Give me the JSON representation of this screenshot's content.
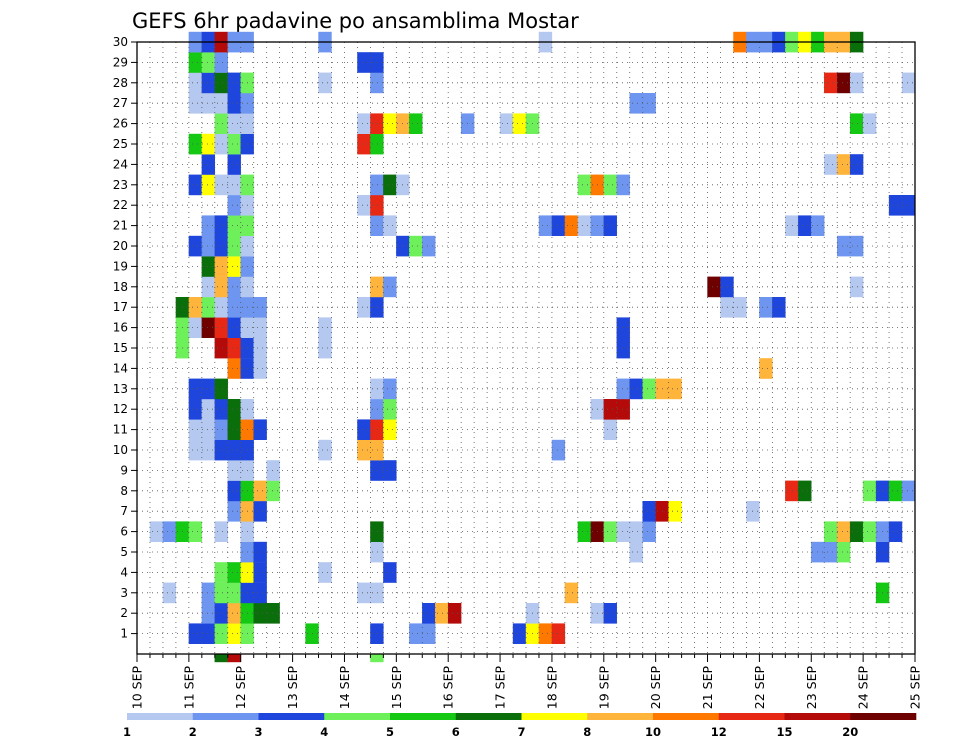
{
  "chart_data": {
    "type": "heatmap",
    "title": "GEFS 6hr padavine po ansamblima Mostar",
    "x_ticks": [
      "10 SEP",
      "11 SEP",
      "12 SEP",
      "13 SEP",
      "14 SEP",
      "15 SEP",
      "16 SEP",
      "17 SEP",
      "18 SEP",
      "19 SEP",
      "20 SEP",
      "21 SEP",
      "22 SEP",
      "23 SEP",
      "24 SEP",
      "25 SEP"
    ],
    "x_unit": "6-hour step from 10 SEP 00Z",
    "y_ticks": [
      1,
      2,
      3,
      4,
      5,
      6,
      7,
      8,
      9,
      10,
      11,
      12,
      13,
      14,
      15,
      16,
      17,
      18,
      19,
      20,
      21,
      22,
      23,
      24,
      25,
      26,
      27,
      28,
      29,
      30
    ],
    "ylim": [
      0,
      30
    ],
    "xlim": [
      0,
      60
    ],
    "grid": true,
    "colorbar": {
      "labels": [
        "1",
        "2",
        "3",
        "4",
        "5",
        "6",
        "7",
        "8",
        "10",
        "12",
        "15",
        "20"
      ],
      "colors": [
        "#b4c8f0",
        "#6e96f0",
        "#1e46dc",
        "#6ef05a",
        "#14c814",
        "#0a6e0a",
        "#ffff00",
        "#ffb43c",
        "#ff7800",
        "#e62814",
        "#b40a0a",
        "#6e0000"
      ]
    },
    "cells": [
      [
        4,
        1,
        2
      ],
      [
        5,
        1,
        2
      ],
      [
        6,
        1,
        3
      ],
      [
        7,
        1,
        6
      ],
      [
        8,
        1,
        3
      ],
      [
        13,
        1,
        4
      ],
      [
        18,
        1,
        2
      ],
      [
        21,
        1,
        1
      ],
      [
        22,
        1,
        1
      ],
      [
        29,
        1,
        2
      ],
      [
        30,
        1,
        6
      ],
      [
        31,
        1,
        8
      ],
      [
        32,
        1,
        9
      ],
      [
        5,
        2,
        1
      ],
      [
        6,
        2,
        2
      ],
      [
        7,
        2,
        7
      ],
      [
        8,
        2,
        4
      ],
      [
        9,
        2,
        5
      ],
      [
        10,
        2,
        5
      ],
      [
        22,
        2,
        2
      ],
      [
        23,
        2,
        7
      ],
      [
        24,
        2,
        10
      ],
      [
        30,
        2,
        0
      ],
      [
        35,
        2,
        0
      ],
      [
        36,
        2,
        2
      ],
      [
        2,
        3,
        0
      ],
      [
        5,
        3,
        1
      ],
      [
        6,
        3,
        3
      ],
      [
        7,
        3,
        3
      ],
      [
        8,
        3,
        2
      ],
      [
        9,
        3,
        2
      ],
      [
        17,
        3,
        0
      ],
      [
        18,
        3,
        0
      ],
      [
        33,
        3,
        7
      ],
      [
        57,
        3,
        4
      ],
      [
        6,
        4,
        3
      ],
      [
        7,
        4,
        4
      ],
      [
        8,
        4,
        6
      ],
      [
        9,
        4,
        2
      ],
      [
        14,
        4,
        0
      ],
      [
        19,
        4,
        2
      ],
      [
        8,
        5,
        1
      ],
      [
        9,
        5,
        2
      ],
      [
        18,
        5,
        0
      ],
      [
        38,
        5,
        0
      ],
      [
        52,
        5,
        1
      ],
      [
        53,
        5,
        1
      ],
      [
        54,
        5,
        3
      ],
      [
        57,
        5,
        2
      ],
      [
        1,
        6,
        0
      ],
      [
        2,
        6,
        1
      ],
      [
        3,
        6,
        4
      ],
      [
        4,
        6,
        3
      ],
      [
        6,
        6,
        0
      ],
      [
        8,
        6,
        0
      ],
      [
        18,
        6,
        5
      ],
      [
        34,
        6,
        4
      ],
      [
        35,
        6,
        11
      ],
      [
        36,
        6,
        3
      ],
      [
        37,
        6,
        0
      ],
      [
        38,
        6,
        0
      ],
      [
        39,
        6,
        1
      ],
      [
        53,
        6,
        3
      ],
      [
        54,
        6,
        7
      ],
      [
        55,
        6,
        5
      ],
      [
        56,
        6,
        3
      ],
      [
        57,
        6,
        1
      ],
      [
        58,
        6,
        2
      ],
      [
        7,
        7,
        1
      ],
      [
        8,
        7,
        7
      ],
      [
        9,
        7,
        2
      ],
      [
        39,
        7,
        2
      ],
      [
        40,
        7,
        10
      ],
      [
        41,
        7,
        6
      ],
      [
        47,
        7,
        0
      ],
      [
        7,
        8,
        2
      ],
      [
        8,
        8,
        4
      ],
      [
        9,
        8,
        7
      ],
      [
        10,
        8,
        3
      ],
      [
        50,
        8,
        9
      ],
      [
        51,
        8,
        5
      ],
      [
        56,
        8,
        3
      ],
      [
        57,
        8,
        2
      ],
      [
        58,
        8,
        4
      ],
      [
        59,
        8,
        1
      ],
      [
        7,
        9,
        0
      ],
      [
        8,
        9,
        0
      ],
      [
        10,
        9,
        0
      ],
      [
        18,
        9,
        2
      ],
      [
        19,
        9,
        2
      ],
      [
        4,
        10,
        0
      ],
      [
        5,
        10,
        0
      ],
      [
        6,
        10,
        2
      ],
      [
        7,
        10,
        2
      ],
      [
        8,
        10,
        2
      ],
      [
        14,
        10,
        0
      ],
      [
        17,
        10,
        7
      ],
      [
        18,
        10,
        7
      ],
      [
        32,
        10,
        1
      ],
      [
        4,
        11,
        0
      ],
      [
        5,
        11,
        0
      ],
      [
        6,
        11,
        1
      ],
      [
        7,
        11,
        5
      ],
      [
        8,
        11,
        8
      ],
      [
        9,
        11,
        2
      ],
      [
        17,
        11,
        2
      ],
      [
        18,
        11,
        9
      ],
      [
        19,
        11,
        6
      ],
      [
        36,
        11,
        0
      ],
      [
        4,
        12,
        2
      ],
      [
        5,
        12,
        0
      ],
      [
        6,
        12,
        2
      ],
      [
        7,
        12,
        5
      ],
      [
        8,
        12,
        0
      ],
      [
        18,
        12,
        1
      ],
      [
        19,
        12,
        3
      ],
      [
        35,
        12,
        0
      ],
      [
        36,
        12,
        10
      ],
      [
        37,
        12,
        10
      ],
      [
        4,
        13,
        2
      ],
      [
        5,
        13,
        2
      ],
      [
        6,
        13,
        5
      ],
      [
        18,
        13,
        0
      ],
      [
        19,
        13,
        1
      ],
      [
        37,
        13,
        1
      ],
      [
        38,
        13,
        2
      ],
      [
        39,
        13,
        3
      ],
      [
        40,
        13,
        7
      ],
      [
        41,
        13,
        7
      ],
      [
        7,
        14,
        8
      ],
      [
        8,
        14,
        2
      ],
      [
        9,
        14,
        0
      ],
      [
        48,
        14,
        7
      ],
      [
        3,
        15,
        3
      ],
      [
        6,
        15,
        10
      ],
      [
        7,
        15,
        9
      ],
      [
        8,
        15,
        2
      ],
      [
        9,
        15,
        0
      ],
      [
        14,
        15,
        0
      ],
      [
        37,
        15,
        2
      ],
      [
        3,
        16,
        3
      ],
      [
        4,
        16,
        0
      ],
      [
        5,
        16,
        11
      ],
      [
        6,
        16,
        9
      ],
      [
        7,
        16,
        2
      ],
      [
        8,
        16,
        0
      ],
      [
        9,
        16,
        0
      ],
      [
        14,
        16,
        0
      ],
      [
        37,
        16,
        2
      ],
      [
        3,
        17,
        5
      ],
      [
        4,
        17,
        7
      ],
      [
        5,
        17,
        3
      ],
      [
        6,
        17,
        0
      ],
      [
        7,
        17,
        1
      ],
      [
        8,
        17,
        1
      ],
      [
        9,
        17,
        1
      ],
      [
        17,
        17,
        0
      ],
      [
        18,
        17,
        2
      ],
      [
        45,
        17,
        0
      ],
      [
        46,
        17,
        0
      ],
      [
        48,
        17,
        1
      ],
      [
        49,
        17,
        2
      ],
      [
        5,
        18,
        0
      ],
      [
        6,
        18,
        7
      ],
      [
        7,
        18,
        1
      ],
      [
        8,
        18,
        0
      ],
      [
        18,
        18,
        7
      ],
      [
        19,
        18,
        1
      ],
      [
        44,
        18,
        11
      ],
      [
        45,
        18,
        2
      ],
      [
        55,
        18,
        0
      ],
      [
        5,
        19,
        5
      ],
      [
        6,
        19,
        7
      ],
      [
        7,
        19,
        6
      ],
      [
        8,
        19,
        1
      ],
      [
        4,
        20,
        2
      ],
      [
        5,
        20,
        1
      ],
      [
        6,
        20,
        2
      ],
      [
        7,
        20,
        3
      ],
      [
        8,
        20,
        0
      ],
      [
        20,
        20,
        2
      ],
      [
        21,
        20,
        3
      ],
      [
        22,
        20,
        1
      ],
      [
        54,
        20,
        1
      ],
      [
        55,
        20,
        1
      ],
      [
        5,
        21,
        1
      ],
      [
        6,
        21,
        2
      ],
      [
        7,
        21,
        3
      ],
      [
        8,
        21,
        3
      ],
      [
        18,
        21,
        1
      ],
      [
        19,
        21,
        0
      ],
      [
        31,
        21,
        1
      ],
      [
        32,
        21,
        2
      ],
      [
        33,
        21,
        8
      ],
      [
        34,
        21,
        0
      ],
      [
        35,
        21,
        1
      ],
      [
        36,
        21,
        2
      ],
      [
        50,
        21,
        0
      ],
      [
        51,
        21,
        2
      ],
      [
        52,
        21,
        1
      ],
      [
        7,
        22,
        1
      ],
      [
        8,
        22,
        0
      ],
      [
        17,
        22,
        0
      ],
      [
        18,
        22,
        9
      ],
      [
        58,
        22,
        2
      ],
      [
        59,
        22,
        2
      ],
      [
        4,
        23,
        2
      ],
      [
        5,
        23,
        6
      ],
      [
        6,
        23,
        0
      ],
      [
        7,
        23,
        0
      ],
      [
        8,
        23,
        3
      ],
      [
        18,
        23,
        1
      ],
      [
        19,
        23,
        5
      ],
      [
        20,
        23,
        0
      ],
      [
        34,
        23,
        3
      ],
      [
        35,
        23,
        8
      ],
      [
        36,
        23,
        3
      ],
      [
        37,
        23,
        1
      ],
      [
        5,
        24,
        2
      ],
      [
        7,
        24,
        2
      ],
      [
        53,
        24,
        0
      ],
      [
        54,
        24,
        7
      ],
      [
        55,
        24,
        2
      ],
      [
        4,
        25,
        4
      ],
      [
        5,
        25,
        6
      ],
      [
        6,
        25,
        0
      ],
      [
        7,
        25,
        3
      ],
      [
        8,
        25,
        2
      ],
      [
        17,
        25,
        9
      ],
      [
        18,
        25,
        4
      ],
      [
        6,
        26,
        3
      ],
      [
        7,
        26,
        0
      ],
      [
        8,
        26,
        0
      ],
      [
        17,
        26,
        0
      ],
      [
        18,
        26,
        9
      ],
      [
        19,
        26,
        6
      ],
      [
        20,
        26,
        7
      ],
      [
        21,
        26,
        4
      ],
      [
        25,
        26,
        1
      ],
      [
        28,
        26,
        0
      ],
      [
        29,
        26,
        6
      ],
      [
        30,
        26,
        3
      ],
      [
        55,
        26,
        4
      ],
      [
        56,
        26,
        0
      ],
      [
        4,
        27,
        0
      ],
      [
        5,
        27,
        0
      ],
      [
        6,
        27,
        0
      ],
      [
        7,
        27,
        2
      ],
      [
        8,
        27,
        1
      ],
      [
        38,
        27,
        1
      ],
      [
        39,
        27,
        1
      ],
      [
        4,
        28,
        0
      ],
      [
        5,
        28,
        2
      ],
      [
        6,
        28,
        5
      ],
      [
        7,
        28,
        2
      ],
      [
        8,
        28,
        3
      ],
      [
        14,
        28,
        0
      ],
      [
        18,
        28,
        1
      ],
      [
        53,
        28,
        9
      ],
      [
        54,
        28,
        11
      ],
      [
        55,
        28,
        0
      ],
      [
        59,
        28,
        0
      ],
      [
        4,
        29,
        4
      ],
      [
        5,
        29,
        3
      ],
      [
        6,
        29,
        1
      ],
      [
        17,
        29,
        2
      ],
      [
        18,
        29,
        2
      ],
      [
        4,
        30,
        1
      ],
      [
        5,
        30,
        2
      ],
      [
        6,
        30,
        10
      ],
      [
        7,
        30,
        1
      ],
      [
        8,
        30,
        1
      ],
      [
        14,
        30,
        1
      ],
      [
        31,
        30,
        0
      ],
      [
        46,
        30,
        8
      ],
      [
        47,
        30,
        1
      ],
      [
        48,
        30,
        1
      ],
      [
        49,
        30,
        2
      ],
      [
        50,
        30,
        3
      ],
      [
        51,
        30,
        6
      ],
      [
        52,
        30,
        4
      ],
      [
        53,
        30,
        7
      ],
      [
        54,
        30,
        7
      ],
      [
        55,
        30,
        5
      ],
      [
        6,
        0,
        5
      ],
      [
        7,
        0,
        10
      ],
      [
        18,
        0,
        3
      ]
    ]
  }
}
